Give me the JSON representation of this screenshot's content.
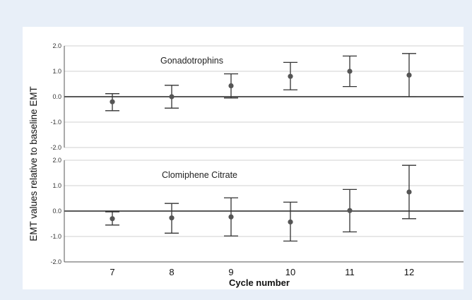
{
  "chart_data": {
    "type": "scatter",
    "style": {
      "grid": true,
      "gridColor": "#d0d0d0",
      "markerColor": "#555555",
      "errorBarColor": "#333333",
      "zeroLineColor": "#222222",
      "background": "#e8eff8"
    },
    "shared": {
      "xlabel": "Cycle number",
      "ylabel": "EMT values relative to baseline EMT",
      "categories": [
        "7",
        "8",
        "9",
        "10",
        "11",
        "12"
      ],
      "ylim": [
        -2.0,
        2.0
      ],
      "yticks": [
        "2.0",
        "1.0",
        "0.0",
        "-1.0",
        "-2.0"
      ]
    },
    "panels": [
      {
        "label": "Gonadotrophins",
        "series": [
          {
            "x": "7",
            "y": -0.2,
            "lower": -0.55,
            "upper": 0.12
          },
          {
            "x": "8",
            "y": 0.0,
            "lower": -0.45,
            "upper": 0.45
          },
          {
            "x": "9",
            "y": 0.43,
            "lower": -0.05,
            "upper": 0.9
          },
          {
            "x": "10",
            "y": 0.8,
            "lower": 0.27,
            "upper": 1.35
          },
          {
            "x": "11",
            "y": 1.0,
            "lower": 0.4,
            "upper": 1.6
          },
          {
            "x": "12",
            "y": 0.85,
            "lower": 0.0,
            "upper": 1.7
          }
        ]
      },
      {
        "label": "Clomiphene Citrate",
        "series": [
          {
            "x": "7",
            "y": -0.3,
            "lower": -0.55,
            "upper": -0.03
          },
          {
            "x": "8",
            "y": -0.27,
            "lower": -0.87,
            "upper": 0.3
          },
          {
            "x": "9",
            "y": -0.23,
            "lower": -0.98,
            "upper": 0.52
          },
          {
            "x": "10",
            "y": -0.43,
            "lower": -1.18,
            "upper": 0.35
          },
          {
            "x": "11",
            "y": 0.02,
            "lower": -0.82,
            "upper": 0.85
          },
          {
            "x": "12",
            "y": 0.75,
            "lower": -0.3,
            "upper": 1.8
          }
        ]
      }
    ]
  }
}
